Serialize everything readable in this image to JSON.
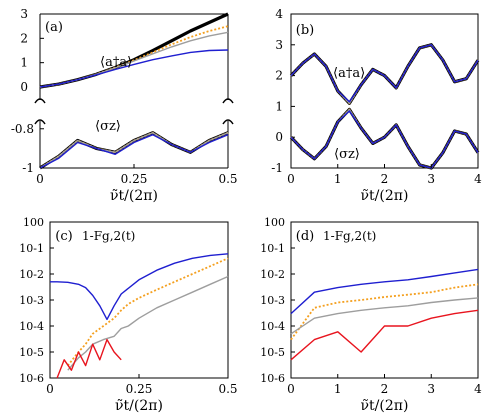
{
  "chart_data": [
    {
      "panel": "(a)",
      "type": "line",
      "xlabel": "ν̃t/(2π)",
      "xlim": [
        0,
        0.5
      ],
      "xticks": [
        "0",
        "0.25",
        "0.5"
      ],
      "axis_break": true,
      "upper": {
        "ylim": [
          -0.3,
          3
        ],
        "yticks": [
          "0",
          "1",
          "2",
          "3"
        ],
        "annotation": "⟨a†a⟩",
        "series": [
          {
            "color": "#000000",
            "style": "thick",
            "x": [
              0,
              0.05,
              0.1,
              0.15,
              0.2,
              0.25,
              0.3,
              0.35,
              0.4,
              0.45,
              0.5
            ],
            "y": [
              0,
              0.12,
              0.3,
              0.52,
              0.8,
              1.12,
              1.5,
              1.9,
              2.3,
              2.65,
              3.0
            ]
          },
          {
            "color": "#f4a020",
            "style": "dotted",
            "x": [
              0,
              0.05,
              0.1,
              0.15,
              0.2,
              0.25,
              0.3,
              0.35,
              0.4,
              0.45,
              0.5
            ],
            "y": [
              0,
              0.12,
              0.3,
              0.52,
              0.8,
              1.1,
              1.42,
              1.75,
              2.05,
              2.3,
              2.5
            ]
          },
          {
            "color": "#9e9e9e",
            "style": "solid",
            "x": [
              0,
              0.05,
              0.1,
              0.15,
              0.2,
              0.25,
              0.3,
              0.35,
              0.4,
              0.45,
              0.5
            ],
            "y": [
              0,
              0.12,
              0.3,
              0.52,
              0.79,
              1.07,
              1.36,
              1.65,
              1.9,
              2.1,
              2.25
            ]
          },
          {
            "color": "#1f1fd0",
            "style": "solid",
            "x": [
              0,
              0.05,
              0.1,
              0.15,
              0.2,
              0.25,
              0.3,
              0.35,
              0.4,
              0.45,
              0.5
            ],
            "y": [
              0,
              0.12,
              0.3,
              0.5,
              0.72,
              0.93,
              1.12,
              1.28,
              1.42,
              1.5,
              1.52
            ]
          }
        ]
      },
      "lower": {
        "ylim": [
          -1,
          -0.74
        ],
        "yticks": [
          "-0.8",
          "-1"
        ],
        "annotation": "⟨σz⟩",
        "series": [
          {
            "color": "#000000",
            "style": "thick",
            "x": [
              0,
              0.05,
              0.1,
              0.15,
              0.2,
              0.25,
              0.3,
              0.35,
              0.4,
              0.45,
              0.5
            ],
            "y": [
              -1,
              -0.94,
              -0.86,
              -0.9,
              -0.92,
              -0.86,
              -0.82,
              -0.88,
              -0.92,
              -0.86,
              -0.82
            ]
          },
          {
            "color": "#f4a020",
            "style": "dotted",
            "x": [
              0,
              0.05,
              0.1,
              0.15,
              0.2,
              0.25,
              0.3,
              0.35,
              0.4,
              0.45,
              0.5
            ],
            "y": [
              -1,
              -0.94,
              -0.86,
              -0.9,
              -0.92,
              -0.86,
              -0.82,
              -0.88,
              -0.92,
              -0.86,
              -0.82
            ]
          },
          {
            "color": "#9e9e9e",
            "style": "solid",
            "x": [
              0,
              0.05,
              0.1,
              0.15,
              0.2,
              0.25,
              0.3,
              0.35,
              0.4,
              0.45,
              0.5
            ],
            "y": [
              -1,
              -0.94,
              -0.86,
              -0.9,
              -0.92,
              -0.86,
              -0.82,
              -0.88,
              -0.92,
              -0.86,
              -0.82
            ]
          },
          {
            "color": "#1f1fd0",
            "style": "solid",
            "x": [
              0,
              0.05,
              0.1,
              0.15,
              0.2,
              0.25,
              0.3,
              0.35,
              0.4,
              0.45,
              0.5
            ],
            "y": [
              -1,
              -0.95,
              -0.87,
              -0.9,
              -0.93,
              -0.87,
              -0.83,
              -0.88,
              -0.92,
              -0.87,
              -0.83
            ]
          }
        ]
      }
    },
    {
      "panel": "(b)",
      "type": "line",
      "xlabel": "ν̃t/(2π)",
      "xlim": [
        0,
        4
      ],
      "xticks": [
        "0",
        "1",
        "2",
        "3",
        "4"
      ],
      "ylim": [
        -1,
        4
      ],
      "yticks": [
        "-1",
        "0",
        "1",
        "2",
        "3",
        "4"
      ],
      "annotations": [
        "⟨a†a⟩",
        "⟨σz⟩"
      ],
      "series": [
        {
          "group": "a†a",
          "color": "#000000",
          "style": "thick",
          "x": [
            0,
            0.25,
            0.5,
            0.75,
            1,
            1.25,
            1.5,
            1.75,
            2,
            2.25,
            2.5,
            2.75,
            3,
            3.25,
            3.5,
            3.75,
            4
          ],
          "y": [
            2.0,
            2.4,
            2.7,
            2.3,
            1.5,
            1.1,
            1.7,
            2.2,
            2.0,
            1.6,
            2.3,
            2.9,
            3.0,
            2.5,
            1.8,
            1.9,
            2.5
          ]
        },
        {
          "group": "a†a",
          "color": "#f4a020",
          "style": "dotted",
          "x": [
            0,
            0.25,
            0.5,
            0.75,
            1,
            1.25,
            1.5,
            1.75,
            2,
            2.25,
            2.5,
            2.75,
            3,
            3.25,
            3.5,
            3.75,
            4
          ],
          "y": [
            2.0,
            2.4,
            2.7,
            2.3,
            1.5,
            1.1,
            1.7,
            2.2,
            2.0,
            1.6,
            2.3,
            2.9,
            3.0,
            2.5,
            1.8,
            1.9,
            2.5
          ]
        },
        {
          "group": "a†a",
          "color": "#9e9e9e",
          "style": "solid",
          "x": [
            0,
            0.25,
            0.5,
            0.75,
            1,
            1.25,
            1.5,
            1.75,
            2,
            2.25,
            2.5,
            2.75,
            3,
            3.25,
            3.5,
            3.75,
            4
          ],
          "y": [
            2.0,
            2.4,
            2.7,
            2.3,
            1.5,
            1.1,
            1.7,
            2.2,
            2.0,
            1.6,
            2.3,
            2.9,
            3.0,
            2.5,
            1.8,
            1.9,
            2.5
          ]
        },
        {
          "group": "a†a",
          "color": "#1f1fd0",
          "style": "solid",
          "x": [
            0,
            0.25,
            0.5,
            0.75,
            1,
            1.25,
            1.5,
            1.75,
            2,
            2.25,
            2.5,
            2.75,
            3,
            3.25,
            3.5,
            3.75,
            4
          ],
          "y": [
            2.0,
            2.4,
            2.7,
            2.3,
            1.5,
            1.15,
            1.7,
            2.2,
            2.0,
            1.6,
            2.3,
            2.9,
            3.0,
            2.5,
            1.8,
            1.9,
            2.5
          ]
        },
        {
          "group": "sz",
          "color": "#000000",
          "style": "thick",
          "x": [
            0,
            0.25,
            0.5,
            0.75,
            1,
            1.25,
            1.5,
            1.75,
            2,
            2.25,
            2.5,
            2.75,
            3,
            3.25,
            3.5,
            3.75,
            4
          ],
          "y": [
            0.0,
            -0.4,
            -0.7,
            -0.3,
            0.5,
            0.9,
            0.3,
            -0.2,
            0.0,
            0.4,
            -0.3,
            -0.9,
            -1.0,
            -0.5,
            0.2,
            0.1,
            -0.5
          ]
        },
        {
          "group": "sz",
          "color": "#f4a020",
          "style": "dotted",
          "x": [
            0,
            0.25,
            0.5,
            0.75,
            1,
            1.25,
            1.5,
            1.75,
            2,
            2.25,
            2.5,
            2.75,
            3,
            3.25,
            3.5,
            3.75,
            4
          ],
          "y": [
            0.0,
            -0.4,
            -0.7,
            -0.3,
            0.5,
            0.9,
            0.3,
            -0.2,
            0.0,
            0.4,
            -0.3,
            -0.9,
            -1.0,
            -0.5,
            0.2,
            0.1,
            -0.5
          ]
        },
        {
          "group": "sz",
          "color": "#9e9e9e",
          "style": "solid",
          "x": [
            0,
            0.25,
            0.5,
            0.75,
            1,
            1.25,
            1.5,
            1.75,
            2,
            2.25,
            2.5,
            2.75,
            3,
            3.25,
            3.5,
            3.75,
            4
          ],
          "y": [
            0.0,
            -0.4,
            -0.7,
            -0.3,
            0.5,
            0.9,
            0.3,
            -0.2,
            0.0,
            0.4,
            -0.3,
            -0.9,
            -1.0,
            -0.5,
            0.2,
            0.1,
            -0.5
          ]
        },
        {
          "group": "sz",
          "color": "#1f1fd0",
          "style": "solid",
          "x": [
            0,
            0.25,
            0.5,
            0.75,
            1,
            1.25,
            1.5,
            1.75,
            2,
            2.25,
            2.5,
            2.75,
            3,
            3.25,
            3.5,
            3.75,
            4
          ],
          "y": [
            0.0,
            -0.4,
            -0.7,
            -0.3,
            0.5,
            0.85,
            0.3,
            -0.2,
            0.0,
            0.4,
            -0.3,
            -0.9,
            -1.0,
            -0.5,
            0.2,
            0.1,
            -0.5
          ]
        }
      ]
    },
    {
      "panel": "(c)",
      "type": "line",
      "annotation": "1-Fg,2(t)",
      "xlabel": "ν̃t/(2π)",
      "xlim": [
        0,
        0.5
      ],
      "xticks": [
        "0",
        "0.25",
        "0.5"
      ],
      "yscale": "log",
      "ylim": [
        1e-06,
        1
      ],
      "yticks": [
        "10-6",
        "10-5",
        "10-4",
        "10-3",
        "10-2",
        "10-1",
        "100"
      ],
      "series": [
        {
          "color": "#1f1fd0",
          "style": "solid",
          "x": [
            0,
            0.02,
            0.05,
            0.08,
            0.1,
            0.12,
            0.14,
            0.16,
            0.18,
            0.2,
            0.25,
            0.3,
            0.35,
            0.4,
            0.45,
            0.5
          ],
          "y": [
            0.005,
            0.005,
            0.0048,
            0.004,
            0.003,
            0.0015,
            0.0006,
            0.00018,
            0.0006,
            0.0017,
            0.006,
            0.014,
            0.026,
            0.04,
            0.052,
            0.06
          ]
        },
        {
          "color": "#f4a020",
          "style": "dotted",
          "x": [
            0.05,
            0.08,
            0.1,
            0.12,
            0.15,
            0.18,
            0.2,
            0.22,
            0.25,
            0.3,
            0.35,
            0.4,
            0.45,
            0.5
          ],
          "y": [
            3e-06,
            1e-05,
            2e-05,
            5e-05,
            0.0001,
            0.0002,
            0.0004,
            0.0007,
            0.0012,
            0.0025,
            0.005,
            0.01,
            0.02,
            0.04
          ]
        },
        {
          "color": "#9e9e9e",
          "style": "solid",
          "x": [
            0.05,
            0.08,
            0.1,
            0.12,
            0.15,
            0.18,
            0.2,
            0.22,
            0.25,
            0.3,
            0.35,
            0.4,
            0.45,
            0.5
          ],
          "y": [
            2e-06,
            6e-06,
            1e-05,
            2e-05,
            3e-05,
            4e-05,
            8e-05,
            0.0001,
            0.0002,
            0.0005,
            0.001,
            0.002,
            0.004,
            0.008
          ]
        },
        {
          "color": "#e8141e",
          "style": "solid",
          "x": [
            0.02,
            0.04,
            0.06,
            0.08,
            0.1,
            0.12,
            0.14,
            0.16,
            0.18,
            0.2
          ],
          "y": [
            1e-06,
            5e-06,
            2e-06,
            1e-05,
            3e-06,
            2e-05,
            5e-06,
            3e-05,
            1e-05,
            5e-06
          ]
        }
      ]
    },
    {
      "panel": "(d)",
      "type": "line",
      "annotation": "1-Fg,2(t)",
      "xlabel": "ν̃t/(2π)",
      "xlim": [
        0,
        4
      ],
      "xticks": [
        "0",
        "1",
        "2",
        "3",
        "4"
      ],
      "yscale": "log",
      "ylim": [
        1e-06,
        1
      ],
      "yticks": [
        "10-6",
        "10-5",
        "10-4",
        "10-3",
        "10-2",
        "10-1",
        "100"
      ],
      "series": [
        {
          "color": "#1f1fd0",
          "style": "solid",
          "x": [
            0,
            0.5,
            1,
            1.5,
            2,
            2.5,
            3,
            3.5,
            4
          ],
          "y": [
            0.0003,
            0.002,
            0.003,
            0.004,
            0.005,
            0.006,
            0.008,
            0.011,
            0.015
          ]
        },
        {
          "color": "#f4a020",
          "style": "dotted",
          "x": [
            0,
            0.5,
            1,
            1.5,
            2,
            2.5,
            3,
            3.5,
            4
          ],
          "y": [
            3e-05,
            0.0005,
            0.0008,
            0.001,
            0.0013,
            0.0016,
            0.002,
            0.003,
            0.004
          ]
        },
        {
          "color": "#9e9e9e",
          "style": "solid",
          "x": [
            0,
            0.5,
            1,
            1.5,
            2,
            2.5,
            3,
            3.5,
            4
          ],
          "y": [
            5e-05,
            0.0002,
            0.0003,
            0.0004,
            0.0005,
            0.0006,
            0.0008,
            0.001,
            0.0012
          ]
        },
        {
          "color": "#e8141e",
          "style": "solid",
          "x": [
            0,
            0.5,
            1,
            1.5,
            2,
            2.5,
            3,
            3.5,
            4
          ],
          "y": [
            5e-06,
            3e-05,
            6e-05,
            1e-05,
            0.0001,
            0.0001,
            0.0002,
            0.0003,
            0.0004
          ]
        }
      ]
    }
  ]
}
